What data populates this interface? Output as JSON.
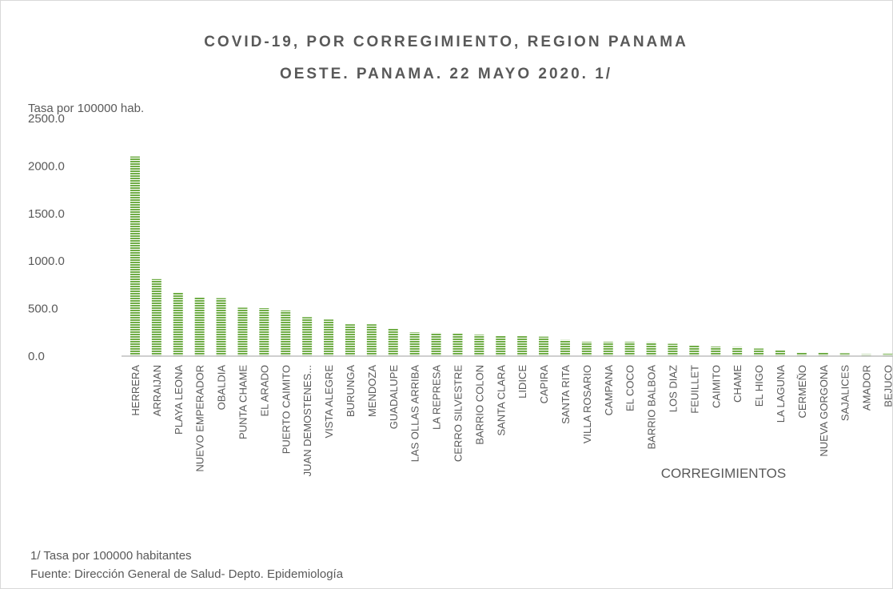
{
  "chart_data": {
    "type": "bar",
    "title_lines": [
      "COVID-19, POR CORREGIMIENTO, REGION PANAMA",
      "OESTE. PANAMA. 22 MAYO 2020. 1/"
    ],
    "y_axis_label": "Tasa por 100000 hab.",
    "x_axis_label": "CORREGIMIENTOS",
    "footnotes": [
      "1/ Tasa por 100000 habitantes",
      "Fuente: Dirección General de Salud- Depto. Epidemiología"
    ],
    "categories": [
      "HERRERA",
      "ARRAIJAN",
      "PLAYA LEONA",
      "NUEVO EMPERADOR",
      "OBALDIA",
      "PUNTA CHAME",
      "EL ARADO",
      "PUERTO CAIMITO",
      "JUAN DEMOSTENES...",
      "VISTA ALEGRE",
      "BURUNGA",
      "MENDOZA",
      "GUADALUPE",
      "LAS OLLAS ARRIBA",
      "LA REPRESA",
      "CERRO SILVESTRE",
      "BARRIO COLON",
      "SANTA CLARA",
      "LIDICE",
      "CAPIRA",
      "SANTA RITA",
      "VILLA ROSARIO",
      "CAMPANA",
      "EL COCO",
      "BARRIO BALBOA",
      "LOS DIAZ",
      "FEUILLET",
      "CAIMITO",
      "CHAME",
      "EL HIGO",
      "LA LAGUNA",
      "CERMEÑO",
      "NUEVA GORGONA",
      "SAJALICES",
      "AMADOR",
      "BEJUCO"
    ],
    "values": [
      2100,
      810,
      665,
      615,
      610,
      510,
      505,
      480,
      410,
      385,
      335,
      335,
      290,
      250,
      245,
      240,
      225,
      215,
      210,
      205,
      170,
      150,
      150,
      150,
      145,
      130,
      115,
      100,
      95,
      80,
      65,
      40,
      35,
      30,
      20,
      25
    ],
    "color": "#70ad47",
    "ylim": [
      0,
      2500
    ],
    "yticks": [
      {
        "value": 0,
        "label": "0.0"
      },
      {
        "value": 500,
        "label": "500.0"
      },
      {
        "value": 1000,
        "label": "1000.0"
      },
      {
        "value": 1500,
        "label": "1500.0"
      },
      {
        "value": 2000,
        "label": "2000.0"
      },
      {
        "value": 2500,
        "label": "2500.0"
      }
    ],
    "grid": false
  }
}
